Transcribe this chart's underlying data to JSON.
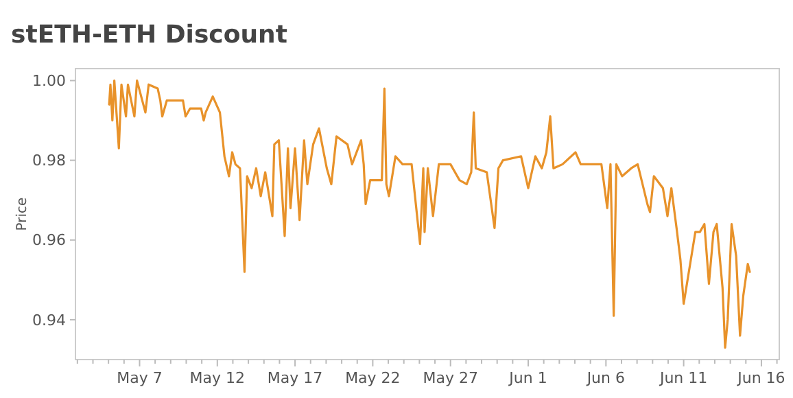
{
  "chart_data": {
    "type": "line",
    "title": "stETH-ETH Discount",
    "ylabel": "Price",
    "grid": false,
    "marker": "none",
    "line_style": "solid",
    "xlim": [
      "--05-02T21:00",
      "--06-17T03:36"
    ],
    "xticks": [
      {
        "value": "--05-03",
        "label": null
      },
      {
        "value": "--05-04",
        "label": null
      },
      {
        "value": "--05-05",
        "label": null
      },
      {
        "value": "--05-06",
        "label": null
      },
      {
        "value": "--05-07",
        "label": "May 7"
      },
      {
        "value": "--05-08",
        "label": null
      },
      {
        "value": "--05-09",
        "label": null
      },
      {
        "value": "--05-10",
        "label": null
      },
      {
        "value": "--05-11",
        "label": null
      },
      {
        "value": "--05-12",
        "label": "May 12"
      },
      {
        "value": "--05-13",
        "label": null
      },
      {
        "value": "--05-14",
        "label": null
      },
      {
        "value": "--05-15",
        "label": null
      },
      {
        "value": "--05-16",
        "label": null
      },
      {
        "value": "--05-17",
        "label": "May 17"
      },
      {
        "value": "--05-18",
        "label": null
      },
      {
        "value": "--05-19",
        "label": null
      },
      {
        "value": "--05-20",
        "label": null
      },
      {
        "value": "--05-21",
        "label": null
      },
      {
        "value": "--05-22",
        "label": "May 22"
      },
      {
        "value": "--05-23",
        "label": null
      },
      {
        "value": "--05-24",
        "label": null
      },
      {
        "value": "--05-25",
        "label": null
      },
      {
        "value": "--05-26",
        "label": null
      },
      {
        "value": "--05-27",
        "label": "May 27"
      },
      {
        "value": "--05-28",
        "label": null
      },
      {
        "value": "--05-29",
        "label": null
      },
      {
        "value": "--05-30",
        "label": null
      },
      {
        "value": "--05-31",
        "label": null
      },
      {
        "value": "--06-01",
        "label": "Jun 1"
      },
      {
        "value": "--06-02",
        "label": null
      },
      {
        "value": "--06-03",
        "label": null
      },
      {
        "value": "--06-04",
        "label": null
      },
      {
        "value": "--06-05",
        "label": null
      },
      {
        "value": "--06-06",
        "label": "Jun 6"
      },
      {
        "value": "--06-07",
        "label": null
      },
      {
        "value": "--06-08",
        "label": null
      },
      {
        "value": "--06-09",
        "label": null
      },
      {
        "value": "--06-10",
        "label": null
      },
      {
        "value": "--06-11",
        "label": "Jun 11"
      },
      {
        "value": "--06-12",
        "label": null
      },
      {
        "value": "--06-13",
        "label": null
      },
      {
        "value": "--06-14",
        "label": null
      },
      {
        "value": "--06-15",
        "label": null
      },
      {
        "value": "--06-16",
        "label": "Jun 16"
      },
      {
        "value": "--06-17",
        "label": null
      }
    ],
    "ylim": [
      0.93,
      1.003
    ],
    "yticks": [
      {
        "value": 0.94,
        "label": "0.94"
      },
      {
        "value": 0.96,
        "label": "0.96"
      },
      {
        "value": 0.98,
        "label": "0.98"
      },
      {
        "value": 1.0,
        "label": "1.00"
      }
    ],
    "series": [
      {
        "color": "#e8922a",
        "x": [
          "--05-05T01:00",
          "--05-05T03:00",
          "--05-05T06:00",
          "--05-05T09:00",
          "--05-05T16:00",
          "--05-05T20:00",
          "--05-06T03:00",
          "--05-06T06:00",
          "--05-06T16:00",
          "--05-06T20:00",
          "--05-07T09:00",
          "--05-07T14:00",
          "--05-08T04:00",
          "--05-08T08:00",
          "--05-08T11:00",
          "--05-08T18:00",
          "--05-09T19:00",
          "--05-09T23:00",
          "--05-10T06:00",
          "--05-10T23:00",
          "--05-11T03:00",
          "--05-11T06:00",
          "--05-11T17:00",
          "--05-12T04:00",
          "--05-12T11:00",
          "--05-12T18:00",
          "--05-12T23:00",
          "--05-13T04:00",
          "--05-13T11:00",
          "--05-13T18:00",
          "--05-13T22:00",
          "--05-14T05:00",
          "--05-14T12:00",
          "--05-14T19:00",
          "--05-15T02:00",
          "--05-15T13:00",
          "--05-15T16:00",
          "--05-15T23:00",
          "--05-16T08:00",
          "--05-16T13:00",
          "--05-16T17:00",
          "--05-17T00:00",
          "--05-17T07:00",
          "--05-17T14:00",
          "--05-17T19:00",
          "--05-18T04:00",
          "--05-18T13:00",
          "--05-19T01:00",
          "--05-19T08:00",
          "--05-19T16:00",
          "--05-20T09:00",
          "--05-20T16:00",
          "--05-21T06:00",
          "--05-21T10:00",
          "--05-21T13:00",
          "--05-21T20:00",
          "--05-22T14:00",
          "--05-22T18:00",
          "--05-22T21:00",
          "--05-23T01:00",
          "--05-23T11:00",
          "--05-23T22:00",
          "--05-24T08:00",
          "--05-24T12:00",
          "--05-25T01:00",
          "--05-25T06:00",
          "--05-25T08:00",
          "--05-25T13:00",
          "--05-25T21:00",
          "--05-26T06:00",
          "--05-27T00:00",
          "--05-27T14:00",
          "--05-28T01:00",
          "--05-28T08:00",
          "--05-28T12:00",
          "--05-28T15:00",
          "--05-29T08:00",
          "--05-29T20:00",
          "--05-30T02:00",
          "--05-30T09:00",
          "--05-31T13:00",
          "--06-01T00:00",
          "--06-01T11:00",
          "--06-01T21:00",
          "--06-02T04:00",
          "--06-02T10:00",
          "--06-02T15:00",
          "--06-03T05:00",
          "--06-04T01:00",
          "--06-04T09:00",
          "--06-05T17:00",
          "--06-06T02:00",
          "--06-06T07:00",
          "--06-06T12:00",
          "--06-06T16:00",
          "--06-07T01:00",
          "--06-07T15:00",
          "--06-08T01:00",
          "--06-08T16:00",
          "--06-08T20:00",
          "--06-09T02:00",
          "--06-09T16:00",
          "--06-09T23:00",
          "--06-10T05:00",
          "--06-10T13:00",
          "--06-10T19:00",
          "--06-11T00:00",
          "--06-11T07:00",
          "--06-11T18:00",
          "--06-12T01:00",
          "--06-12T08:00",
          "--06-12T15:00",
          "--06-12T22:00",
          "--06-13T03:00",
          "--06-13T12:00",
          "--06-13T16:00",
          "--06-13T20:00",
          "--06-14T02:00",
          "--06-14T09:00",
          "--06-14T15:00",
          "--06-14T20:00",
          "--06-15T03:00",
          "--06-15T06:00"
        ],
        "values": [
          0.994,
          0.999,
          0.99,
          1.0,
          0.983,
          0.999,
          0.991,
          0.999,
          0.991,
          1.0,
          0.992,
          0.999,
          0.998,
          0.995,
          0.991,
          0.995,
          0.995,
          0.991,
          0.993,
          0.993,
          0.99,
          0.992,
          0.996,
          0.992,
          0.981,
          0.976,
          0.982,
          0.979,
          0.978,
          0.952,
          0.976,
          0.973,
          0.978,
          0.971,
          0.977,
          0.966,
          0.984,
          0.985,
          0.961,
          0.983,
          0.968,
          0.983,
          0.965,
          0.985,
          0.974,
          0.984,
          0.988,
          0.978,
          0.974,
          0.986,
          0.984,
          0.979,
          0.985,
          0.979,
          0.969,
          0.975,
          0.975,
          0.998,
          0.974,
          0.971,
          0.981,
          0.979,
          0.979,
          0.979,
          0.959,
          0.978,
          0.962,
          0.978,
          0.966,
          0.979,
          0.979,
          0.975,
          0.974,
          0.977,
          0.992,
          0.978,
          0.977,
          0.963,
          0.978,
          0.98,
          0.981,
          0.973,
          0.981,
          0.978,
          0.982,
          0.991,
          0.978,
          0.979,
          0.982,
          0.979,
          0.979,
          0.968,
          0.979,
          0.941,
          0.979,
          0.976,
          0.978,
          0.979,
          0.969,
          0.967,
          0.976,
          0.973,
          0.966,
          0.973,
          0.963,
          0.955,
          0.944,
          0.951,
          0.962,
          0.962,
          0.964,
          0.949,
          0.962,
          0.964,
          0.948,
          0.933,
          0.94,
          0.964,
          0.956,
          0.936,
          0.946,
          0.954,
          0.952
        ]
      }
    ]
  }
}
